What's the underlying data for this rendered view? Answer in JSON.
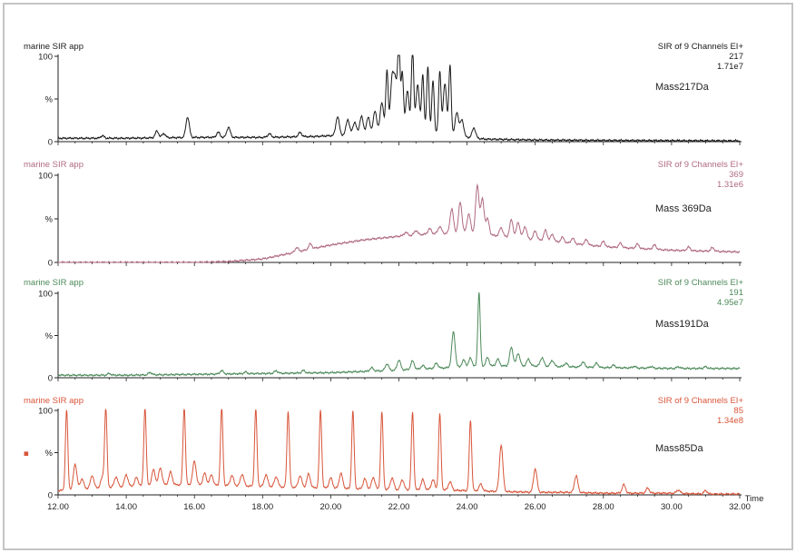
{
  "chart_data": {
    "type": "line",
    "xlabel": "Time",
    "xlim": [
      12.0,
      32.0
    ],
    "xticks": [
      "12.00",
      "14.00",
      "16.00",
      "18.00",
      "20.00",
      "22.00",
      "24.00",
      "26.00",
      "28.00",
      "30.00",
      "32.00"
    ],
    "panels": [
      {
        "id": "p217",
        "app": "marine SIR app",
        "header": [
          "SIR of 9 Channels EI+",
          "217",
          "1.71e7"
        ],
        "mass_label": "Mass217Da",
        "color": "#1a1a1a",
        "yticks": [
          "100",
          "%",
          "0"
        ],
        "baseline": [
          [
            12.0,
            4
          ],
          [
            14.0,
            4
          ],
          [
            16.0,
            5
          ],
          [
            18.0,
            5
          ],
          [
            19.5,
            6
          ],
          [
            20.5,
            8
          ],
          [
            21.0,
            10
          ],
          [
            22.0,
            12
          ],
          [
            23.0,
            10
          ],
          [
            23.8,
            6
          ],
          [
            24.5,
            3
          ],
          [
            26.0,
            2
          ],
          [
            28.0,
            1.5
          ],
          [
            32.0,
            1
          ]
        ],
        "peaks": [
          [
            13.3,
            3
          ],
          [
            14.9,
            8
          ],
          [
            15.1,
            5
          ],
          [
            15.8,
            24
          ],
          [
            16.7,
            6
          ],
          [
            17.0,
            12
          ],
          [
            18.2,
            4
          ],
          [
            19.1,
            5
          ],
          [
            20.2,
            22
          ],
          [
            20.5,
            18
          ],
          [
            20.7,
            14
          ],
          [
            20.9,
            20
          ],
          [
            21.1,
            18
          ],
          [
            21.3,
            25
          ],
          [
            21.5,
            35
          ],
          [
            21.65,
            72
          ],
          [
            21.8,
            60
          ],
          [
            21.9,
            55
          ],
          [
            22.0,
            100
          ],
          [
            22.1,
            68
          ],
          [
            22.25,
            48
          ],
          [
            22.4,
            98
          ],
          [
            22.55,
            56
          ],
          [
            22.7,
            68
          ],
          [
            22.85,
            78
          ],
          [
            23.0,
            62
          ],
          [
            23.2,
            74
          ],
          [
            23.35,
            60
          ],
          [
            23.5,
            82
          ],
          [
            23.7,
            28
          ],
          [
            23.85,
            20
          ],
          [
            24.2,
            12
          ]
        ]
      },
      {
        "id": "p369",
        "app": "marine SIR app",
        "header": [
          "SIR of 9 Channels EI+",
          "369",
          "1.31e6"
        ],
        "mass_label": "Mass 369Da",
        "color": "#b06a82",
        "yticks": [
          "100",
          "%",
          "0"
        ],
        "baseline": [
          [
            12.0,
            0
          ],
          [
            16.0,
            0
          ],
          [
            17.0,
            1
          ],
          [
            18.0,
            4
          ],
          [
            19.0,
            12
          ],
          [
            20.0,
            20
          ],
          [
            21.0,
            26
          ],
          [
            22.0,
            30
          ],
          [
            23.0,
            33
          ],
          [
            24.0,
            34
          ],
          [
            25.0,
            30
          ],
          [
            26.0,
            26
          ],
          [
            27.0,
            22
          ],
          [
            28.0,
            18
          ],
          [
            29.0,
            16
          ],
          [
            30.0,
            14
          ],
          [
            31.0,
            13
          ],
          [
            32.0,
            12
          ]
        ],
        "peaks": [
          [
            19.0,
            5
          ],
          [
            19.4,
            6
          ],
          [
            22.2,
            4
          ],
          [
            22.5,
            5
          ],
          [
            22.9,
            6
          ],
          [
            23.2,
            8
          ],
          [
            23.55,
            28
          ],
          [
            23.8,
            35
          ],
          [
            24.05,
            22
          ],
          [
            24.3,
            55
          ],
          [
            24.45,
            40
          ],
          [
            24.6,
            18
          ],
          [
            25.0,
            10
          ],
          [
            25.3,
            20
          ],
          [
            25.5,
            18
          ],
          [
            25.7,
            14
          ],
          [
            26.0,
            10
          ],
          [
            26.3,
            12
          ],
          [
            26.5,
            8
          ],
          [
            26.8,
            6
          ],
          [
            27.1,
            6
          ],
          [
            27.5,
            6
          ],
          [
            28.0,
            6
          ],
          [
            28.5,
            5
          ],
          [
            29.0,
            5
          ],
          [
            29.5,
            5
          ],
          [
            30.5,
            4
          ],
          [
            31.2,
            4
          ]
        ]
      },
      {
        "id": "p191",
        "app": "marine SIR app",
        "header": [
          "SIR of 9 Channels EI+",
          "191",
          "4.95e7"
        ],
        "mass_label": "Mass191Da",
        "color": "#4d8a5a",
        "yticks": [
          "100",
          "%",
          "0"
        ],
        "baseline": [
          [
            12.0,
            3
          ],
          [
            14.0,
            3
          ],
          [
            16.0,
            4
          ],
          [
            18.0,
            5
          ],
          [
            20.0,
            6
          ],
          [
            22.0,
            9
          ],
          [
            23.0,
            11
          ],
          [
            24.0,
            13
          ],
          [
            25.0,
            14
          ],
          [
            26.0,
            14
          ],
          [
            28.0,
            12
          ],
          [
            30.0,
            11
          ],
          [
            32.0,
            11
          ]
        ],
        "peaks": [
          [
            13.5,
            2
          ],
          [
            14.7,
            3
          ],
          [
            16.8,
            4
          ],
          [
            17.5,
            2
          ],
          [
            18.4,
            3
          ],
          [
            19.2,
            3
          ],
          [
            21.2,
            4
          ],
          [
            21.65,
            8
          ],
          [
            22.0,
            12
          ],
          [
            22.4,
            10
          ],
          [
            22.7,
            4
          ],
          [
            23.1,
            6
          ],
          [
            23.6,
            42
          ],
          [
            23.9,
            8
          ],
          [
            24.1,
            10
          ],
          [
            24.35,
            88
          ],
          [
            24.6,
            10
          ],
          [
            24.9,
            8
          ],
          [
            25.3,
            22
          ],
          [
            25.5,
            15
          ],
          [
            25.8,
            8
          ],
          [
            26.2,
            10
          ],
          [
            26.5,
            7
          ],
          [
            26.9,
            4
          ],
          [
            27.4,
            6
          ],
          [
            27.8,
            5
          ],
          [
            28.3,
            3
          ],
          [
            28.9,
            2
          ],
          [
            29.4,
            2
          ],
          [
            30.2,
            2
          ],
          [
            31.0,
            2
          ]
        ]
      },
      {
        "id": "p85",
        "app": "marine SIR app",
        "header": [
          "SIR of 9 Channels EI+",
          "85",
          "1.34e8"
        ],
        "mass_label": "Mass85Da",
        "color": "#d8553a",
        "yticks": [
          "100",
          "%",
          "0"
        ],
        "marker": "■",
        "baseline": [
          [
            12.0,
            5
          ],
          [
            13.0,
            8
          ],
          [
            14.0,
            10
          ],
          [
            15.0,
            12
          ],
          [
            16.0,
            12
          ],
          [
            17.0,
            11
          ],
          [
            18.0,
            10
          ],
          [
            19.0,
            9
          ],
          [
            20.0,
            8
          ],
          [
            21.0,
            7
          ],
          [
            22.0,
            6
          ],
          [
            23.0,
            6
          ],
          [
            24.0,
            5
          ],
          [
            25.0,
            4
          ],
          [
            26.0,
            3
          ],
          [
            27.0,
            3
          ],
          [
            28.0,
            2
          ],
          [
            29.0,
            2
          ],
          [
            30.0,
            2
          ],
          [
            31.0,
            1
          ],
          [
            32.0,
            1
          ]
        ],
        "peaks": [
          [
            12.25,
            95
          ],
          [
            12.5,
            30
          ],
          [
            12.7,
            12
          ],
          [
            13.0,
            15
          ],
          [
            13.3,
            12
          ],
          [
            13.4,
            93
          ],
          [
            13.7,
            12
          ],
          [
            14.0,
            14
          ],
          [
            14.3,
            10
          ],
          [
            14.55,
            93
          ],
          [
            14.8,
            18
          ],
          [
            15.0,
            20
          ],
          [
            15.3,
            15
          ],
          [
            15.7,
            92
          ],
          [
            16.0,
            28
          ],
          [
            16.3,
            14
          ],
          [
            16.5,
            12
          ],
          [
            16.8,
            92
          ],
          [
            17.1,
            12
          ],
          [
            17.4,
            14
          ],
          [
            17.8,
            92
          ],
          [
            18.1,
            14
          ],
          [
            18.4,
            12
          ],
          [
            18.75,
            90
          ],
          [
            19.1,
            14
          ],
          [
            19.35,
            16
          ],
          [
            19.7,
            92
          ],
          [
            20.0,
            12
          ],
          [
            20.3,
            18
          ],
          [
            20.65,
            92
          ],
          [
            21.0,
            12
          ],
          [
            21.25,
            14
          ],
          [
            21.5,
            92
          ],
          [
            21.8,
            14
          ],
          [
            22.1,
            12
          ],
          [
            22.4,
            92
          ],
          [
            22.7,
            12
          ],
          [
            23.0,
            12
          ],
          [
            23.2,
            90
          ],
          [
            23.5,
            10
          ],
          [
            24.1,
            84
          ],
          [
            24.4,
            8
          ],
          [
            25.0,
            55
          ],
          [
            26.0,
            28
          ],
          [
            27.2,
            20
          ],
          [
            28.6,
            10
          ],
          [
            29.3,
            6
          ],
          [
            30.2,
            4
          ],
          [
            31.0,
            4
          ]
        ]
      }
    ]
  }
}
